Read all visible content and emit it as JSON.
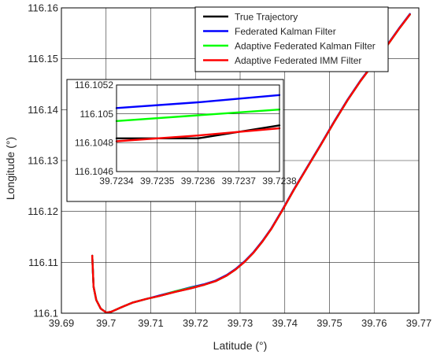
{
  "chart_data": {
    "type": "line",
    "title": "",
    "xlabel": "Latitude (°)",
    "ylabel": "Longitude (°)",
    "xlim": [
      39.69,
      39.77
    ],
    "ylim": [
      116.1,
      116.16
    ],
    "xticks": [
      "39.69",
      "39.7",
      "39.71",
      "39.72",
      "39.73",
      "39.74",
      "39.75",
      "39.76",
      "39.77"
    ],
    "yticks": [
      "116.1",
      "116.11",
      "116.12",
      "116.13",
      "116.14",
      "116.15",
      "116.16"
    ],
    "grid": true,
    "legend_position": "top-right",
    "series": [
      {
        "name": "True Trajectory",
        "color": "#000000",
        "x": [
          39.6969,
          39.6972,
          39.6978,
          39.6988,
          39.7001,
          39.7012,
          39.7035,
          39.706,
          39.709,
          39.712,
          39.7155,
          39.719,
          39.722,
          39.7245,
          39.727,
          39.729,
          39.731,
          39.733,
          39.735,
          39.737,
          39.7395,
          39.742,
          39.745,
          39.748,
          39.751,
          39.754,
          39.757,
          39.76,
          39.763,
          39.7655,
          39.768
        ],
        "y": [
          116.1113,
          116.1052,
          116.1026,
          116.1009,
          116.1001,
          116.1003,
          116.1012,
          116.1021,
          116.1028,
          116.1034,
          116.1042,
          116.1049,
          116.1056,
          116.1063,
          116.1074,
          116.1086,
          116.1101,
          116.1119,
          116.1141,
          116.1166,
          116.1203,
          116.1242,
          116.1286,
          116.133,
          116.1375,
          116.1418,
          116.1457,
          116.1492,
          116.1527,
          116.1558,
          116.1587
        ]
      },
      {
        "name": "Federated Kalman Filter",
        "color": "#0000ff",
        "x": [
          39.6969,
          39.6972,
          39.6978,
          39.6988,
          39.7001,
          39.7012,
          39.7035,
          39.706,
          39.709,
          39.712,
          39.7155,
          39.719,
          39.722,
          39.7245,
          39.727,
          39.729,
          39.731,
          39.733,
          39.735,
          39.737,
          39.7395,
          39.742,
          39.745,
          39.748,
          39.751,
          39.754,
          39.757,
          39.76,
          39.763,
          39.7655,
          39.768
        ],
        "y": [
          116.1113,
          116.1052,
          116.1026,
          116.1009,
          116.1001,
          116.1003,
          116.1012,
          116.1021,
          116.1028,
          116.1035,
          116.1043,
          116.1051,
          116.1057,
          116.1064,
          116.1075,
          116.1087,
          116.1102,
          116.112,
          116.1142,
          116.1167,
          116.1204,
          116.1243,
          116.1287,
          116.1331,
          116.1376,
          116.1419,
          116.1458,
          116.1493,
          116.1528,
          116.1559,
          116.1588
        ]
      },
      {
        "name": "Adaptive Federated Kalman Filter",
        "color": "#00ff00",
        "x": [
          39.6969,
          39.6972,
          39.6978,
          39.6988,
          39.7001,
          39.7012,
          39.7035,
          39.706,
          39.709,
          39.712,
          39.7155,
          39.719,
          39.722,
          39.7245,
          39.727,
          39.729,
          39.731,
          39.733,
          39.735,
          39.737,
          39.7395,
          39.742,
          39.745,
          39.748,
          39.751,
          39.754,
          39.757,
          39.76,
          39.763,
          39.7655,
          39.768
        ],
        "y": [
          116.1113,
          116.1052,
          116.1026,
          116.1009,
          116.1001,
          116.1003,
          116.1012,
          116.1021,
          116.1028,
          116.1034,
          116.1043,
          116.105,
          116.1056,
          116.1063,
          116.1074,
          116.1086,
          116.1101,
          116.1119,
          116.1141,
          116.1166,
          116.1203,
          116.1242,
          116.1286,
          116.133,
          116.1375,
          116.1418,
          116.1457,
          116.1492,
          116.1527,
          116.1558,
          116.1587
        ]
      },
      {
        "name": "Adaptive Federated IMM Filter",
        "color": "#ff0000",
        "x": [
          39.6969,
          39.6972,
          39.6978,
          39.6988,
          39.7001,
          39.7012,
          39.7035,
          39.706,
          39.709,
          39.712,
          39.7155,
          39.719,
          39.722,
          39.7245,
          39.727,
          39.729,
          39.731,
          39.733,
          39.735,
          39.737,
          39.7395,
          39.742,
          39.745,
          39.748,
          39.751,
          39.754,
          39.757,
          39.76,
          39.763,
          39.7655,
          39.768
        ],
        "y": [
          116.1113,
          116.1052,
          116.1026,
          116.1009,
          116.1001,
          116.1003,
          116.1012,
          116.1021,
          116.1028,
          116.1034,
          116.1042,
          116.1049,
          116.1056,
          116.1063,
          116.1074,
          116.1086,
          116.1101,
          116.1119,
          116.1141,
          116.1166,
          116.1203,
          116.1242,
          116.1286,
          116.133,
          116.1375,
          116.1418,
          116.1457,
          116.1492,
          116.1527,
          116.1558,
          116.1587
        ]
      }
    ],
    "inset": {
      "xlim": [
        39.7234,
        39.7238
      ],
      "ylim": [
        116.1046,
        116.1052
      ],
      "xticks": [
        "39.7234",
        "39.7235",
        "39.7236",
        "39.7237",
        "39.7238"
      ],
      "yticks": [
        "116.1046",
        "116.1048",
        "116.105",
        "116.1052"
      ],
      "grid": true,
      "series": [
        {
          "name": "True Trajectory",
          "color": "#000000",
          "x": [
            39.7234,
            39.7236,
            39.7238
          ],
          "y": [
            116.10483,
            116.10483,
            116.10492
          ]
        },
        {
          "name": "Federated Kalman Filter",
          "color": "#0000ff",
          "x": [
            39.7234,
            39.7236,
            39.7238
          ],
          "y": [
            116.10504,
            116.10508,
            116.10513
          ]
        },
        {
          "name": "Adaptive Federated Kalman Filter",
          "color": "#00ff00",
          "x": [
            39.7234,
            39.7236,
            39.7238
          ],
          "y": [
            116.10495,
            116.10499,
            116.10503
          ]
        },
        {
          "name": "Adaptive Federated IMM Filter",
          "color": "#ff0000",
          "x": [
            39.7234,
            39.7236,
            39.7238
          ],
          "y": [
            116.10481,
            116.10485,
            116.1049
          ]
        }
      ]
    }
  }
}
